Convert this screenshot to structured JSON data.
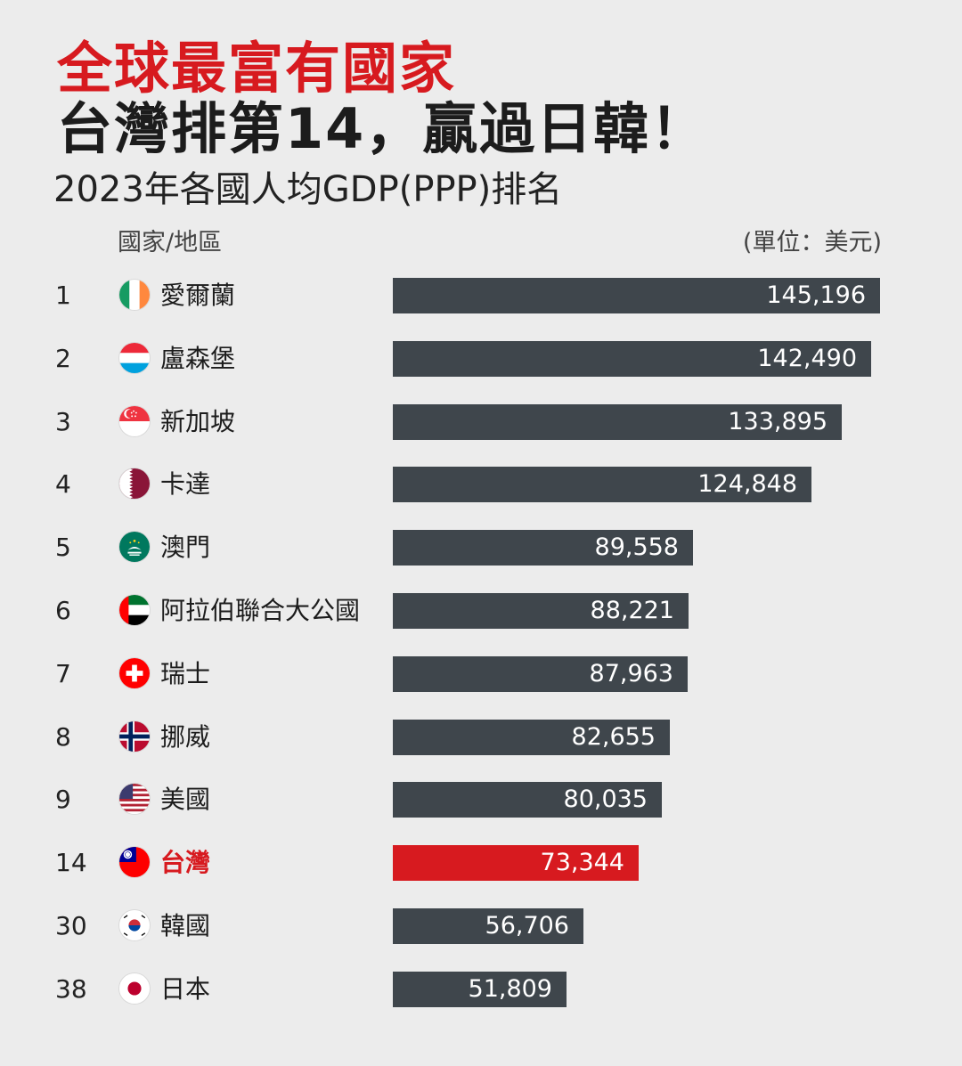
{
  "header": {
    "title_line1": "全球最富有國家",
    "title_line2": "台灣排第14，贏過日韓！",
    "subtitle": "2023年各國人均GDP(PPP)排名",
    "column_label": "國家/地區",
    "unit_label": "(單位：美元)"
  },
  "colors": {
    "title_red": "#d71a1f",
    "bar": "#3f464c",
    "highlight": "#d71a1f",
    "background": "#ececec"
  },
  "chart_data": {
    "type": "bar",
    "orientation": "horizontal",
    "title": "2023年各國人均GDP(PPP)排名",
    "unit": "(單位：美元)",
    "xlim": [
      0,
      145196
    ],
    "grid": false,
    "rows": [
      {
        "rank": "1",
        "name": "愛爾蘭",
        "value": 145196,
        "label": "145,196",
        "flag": "ireland-flag-icon",
        "highlight": false
      },
      {
        "rank": "2",
        "name": "盧森堡",
        "value": 142490,
        "label": "142,490",
        "flag": "luxembourg-flag-icon",
        "highlight": false
      },
      {
        "rank": "3",
        "name": "新加坡",
        "value": 133895,
        "label": "133,895",
        "flag": "singapore-flag-icon",
        "highlight": false
      },
      {
        "rank": "4",
        "name": "卡達",
        "value": 124848,
        "label": "124,848",
        "flag": "qatar-flag-icon",
        "highlight": false
      },
      {
        "rank": "5",
        "name": "澳門",
        "value": 89558,
        "label": "89,558",
        "flag": "macau-flag-icon",
        "highlight": false
      },
      {
        "rank": "6",
        "name": "阿拉伯聯合大公國",
        "value": 88221,
        "label": "88,221",
        "flag": "uae-flag-icon",
        "highlight": false
      },
      {
        "rank": "7",
        "name": "瑞士",
        "value": 87963,
        "label": "87,963",
        "flag": "switzerland-flag-icon",
        "highlight": false
      },
      {
        "rank": "8",
        "name": "挪威",
        "value": 82655,
        "label": "82,655",
        "flag": "norway-flag-icon",
        "highlight": false
      },
      {
        "rank": "9",
        "name": "美國",
        "value": 80035,
        "label": "80,035",
        "flag": "usa-flag-icon",
        "highlight": false
      },
      {
        "rank": "14",
        "name": "台灣",
        "value": 73344,
        "label": "73,344",
        "flag": "taiwan-flag-icon",
        "highlight": true
      },
      {
        "rank": "30",
        "name": "韓國",
        "value": 56706,
        "label": "56,706",
        "flag": "korea-flag-icon",
        "highlight": false
      },
      {
        "rank": "38",
        "name": "日本",
        "value": 51809,
        "label": "51,809",
        "flag": "japan-flag-icon",
        "highlight": false
      }
    ]
  }
}
